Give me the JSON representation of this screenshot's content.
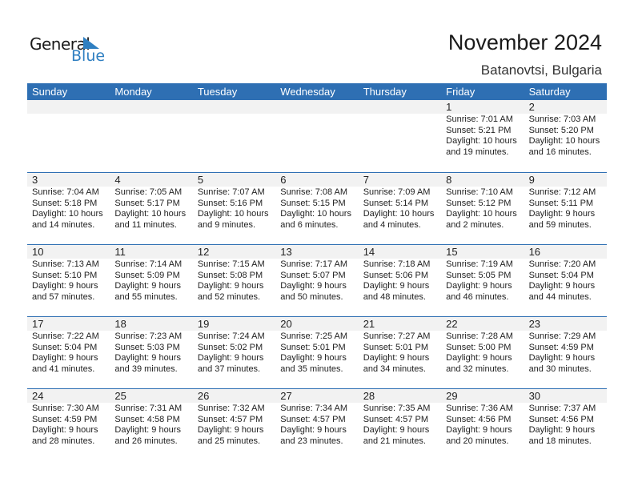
{
  "logo": {
    "line1": "General",
    "line2": "Blue"
  },
  "header": {
    "title": "November 2024",
    "location": "Batanovtsi, Bulgaria"
  },
  "weekdays": [
    "Sunday",
    "Monday",
    "Tuesday",
    "Wednesday",
    "Thursday",
    "Friday",
    "Saturday"
  ],
  "colors": {
    "accent": "#2e6fb3",
    "day_strip": "#f2f2f2"
  },
  "weeks": [
    [
      null,
      null,
      null,
      null,
      null,
      {
        "day": "1",
        "sunrise": "Sunrise: 7:01 AM",
        "sunset": "Sunset: 5:21 PM",
        "daylight1": "Daylight: 10 hours",
        "daylight2": "and 19 minutes."
      },
      {
        "day": "2",
        "sunrise": "Sunrise: 7:03 AM",
        "sunset": "Sunset: 5:20 PM",
        "daylight1": "Daylight: 10 hours",
        "daylight2": "and 16 minutes."
      }
    ],
    [
      {
        "day": "3",
        "sunrise": "Sunrise: 7:04 AM",
        "sunset": "Sunset: 5:18 PM",
        "daylight1": "Daylight: 10 hours",
        "daylight2": "and 14 minutes."
      },
      {
        "day": "4",
        "sunrise": "Sunrise: 7:05 AM",
        "sunset": "Sunset: 5:17 PM",
        "daylight1": "Daylight: 10 hours",
        "daylight2": "and 11 minutes."
      },
      {
        "day": "5",
        "sunrise": "Sunrise: 7:07 AM",
        "sunset": "Sunset: 5:16 PM",
        "daylight1": "Daylight: 10 hours",
        "daylight2": "and 9 minutes."
      },
      {
        "day": "6",
        "sunrise": "Sunrise: 7:08 AM",
        "sunset": "Sunset: 5:15 PM",
        "daylight1": "Daylight: 10 hours",
        "daylight2": "and 6 minutes."
      },
      {
        "day": "7",
        "sunrise": "Sunrise: 7:09 AM",
        "sunset": "Sunset: 5:14 PM",
        "daylight1": "Daylight: 10 hours",
        "daylight2": "and 4 minutes."
      },
      {
        "day": "8",
        "sunrise": "Sunrise: 7:10 AM",
        "sunset": "Sunset: 5:12 PM",
        "daylight1": "Daylight: 10 hours",
        "daylight2": "and 2 minutes."
      },
      {
        "day": "9",
        "sunrise": "Sunrise: 7:12 AM",
        "sunset": "Sunset: 5:11 PM",
        "daylight1": "Daylight: 9 hours",
        "daylight2": "and 59 minutes."
      }
    ],
    [
      {
        "day": "10",
        "sunrise": "Sunrise: 7:13 AM",
        "sunset": "Sunset: 5:10 PM",
        "daylight1": "Daylight: 9 hours",
        "daylight2": "and 57 minutes."
      },
      {
        "day": "11",
        "sunrise": "Sunrise: 7:14 AM",
        "sunset": "Sunset: 5:09 PM",
        "daylight1": "Daylight: 9 hours",
        "daylight2": "and 55 minutes."
      },
      {
        "day": "12",
        "sunrise": "Sunrise: 7:15 AM",
        "sunset": "Sunset: 5:08 PM",
        "daylight1": "Daylight: 9 hours",
        "daylight2": "and 52 minutes."
      },
      {
        "day": "13",
        "sunrise": "Sunrise: 7:17 AM",
        "sunset": "Sunset: 5:07 PM",
        "daylight1": "Daylight: 9 hours",
        "daylight2": "and 50 minutes."
      },
      {
        "day": "14",
        "sunrise": "Sunrise: 7:18 AM",
        "sunset": "Sunset: 5:06 PM",
        "daylight1": "Daylight: 9 hours",
        "daylight2": "and 48 minutes."
      },
      {
        "day": "15",
        "sunrise": "Sunrise: 7:19 AM",
        "sunset": "Sunset: 5:05 PM",
        "daylight1": "Daylight: 9 hours",
        "daylight2": "and 46 minutes."
      },
      {
        "day": "16",
        "sunrise": "Sunrise: 7:20 AM",
        "sunset": "Sunset: 5:04 PM",
        "daylight1": "Daylight: 9 hours",
        "daylight2": "and 44 minutes."
      }
    ],
    [
      {
        "day": "17",
        "sunrise": "Sunrise: 7:22 AM",
        "sunset": "Sunset: 5:04 PM",
        "daylight1": "Daylight: 9 hours",
        "daylight2": "and 41 minutes."
      },
      {
        "day": "18",
        "sunrise": "Sunrise: 7:23 AM",
        "sunset": "Sunset: 5:03 PM",
        "daylight1": "Daylight: 9 hours",
        "daylight2": "and 39 minutes."
      },
      {
        "day": "19",
        "sunrise": "Sunrise: 7:24 AM",
        "sunset": "Sunset: 5:02 PM",
        "daylight1": "Daylight: 9 hours",
        "daylight2": "and 37 minutes."
      },
      {
        "day": "20",
        "sunrise": "Sunrise: 7:25 AM",
        "sunset": "Sunset: 5:01 PM",
        "daylight1": "Daylight: 9 hours",
        "daylight2": "and 35 minutes."
      },
      {
        "day": "21",
        "sunrise": "Sunrise: 7:27 AM",
        "sunset": "Sunset: 5:01 PM",
        "daylight1": "Daylight: 9 hours",
        "daylight2": "and 34 minutes."
      },
      {
        "day": "22",
        "sunrise": "Sunrise: 7:28 AM",
        "sunset": "Sunset: 5:00 PM",
        "daylight1": "Daylight: 9 hours",
        "daylight2": "and 32 minutes."
      },
      {
        "day": "23",
        "sunrise": "Sunrise: 7:29 AM",
        "sunset": "Sunset: 4:59 PM",
        "daylight1": "Daylight: 9 hours",
        "daylight2": "and 30 minutes."
      }
    ],
    [
      {
        "day": "24",
        "sunrise": "Sunrise: 7:30 AM",
        "sunset": "Sunset: 4:59 PM",
        "daylight1": "Daylight: 9 hours",
        "daylight2": "and 28 minutes."
      },
      {
        "day": "25",
        "sunrise": "Sunrise: 7:31 AM",
        "sunset": "Sunset: 4:58 PM",
        "daylight1": "Daylight: 9 hours",
        "daylight2": "and 26 minutes."
      },
      {
        "day": "26",
        "sunrise": "Sunrise: 7:32 AM",
        "sunset": "Sunset: 4:57 PM",
        "daylight1": "Daylight: 9 hours",
        "daylight2": "and 25 minutes."
      },
      {
        "day": "27",
        "sunrise": "Sunrise: 7:34 AM",
        "sunset": "Sunset: 4:57 PM",
        "daylight1": "Daylight: 9 hours",
        "daylight2": "and 23 minutes."
      },
      {
        "day": "28",
        "sunrise": "Sunrise: 7:35 AM",
        "sunset": "Sunset: 4:57 PM",
        "daylight1": "Daylight: 9 hours",
        "daylight2": "and 21 minutes."
      },
      {
        "day": "29",
        "sunrise": "Sunrise: 7:36 AM",
        "sunset": "Sunset: 4:56 PM",
        "daylight1": "Daylight: 9 hours",
        "daylight2": "and 20 minutes."
      },
      {
        "day": "30",
        "sunrise": "Sunrise: 7:37 AM",
        "sunset": "Sunset: 4:56 PM",
        "daylight1": "Daylight: 9 hours",
        "daylight2": "and 18 minutes."
      }
    ]
  ]
}
